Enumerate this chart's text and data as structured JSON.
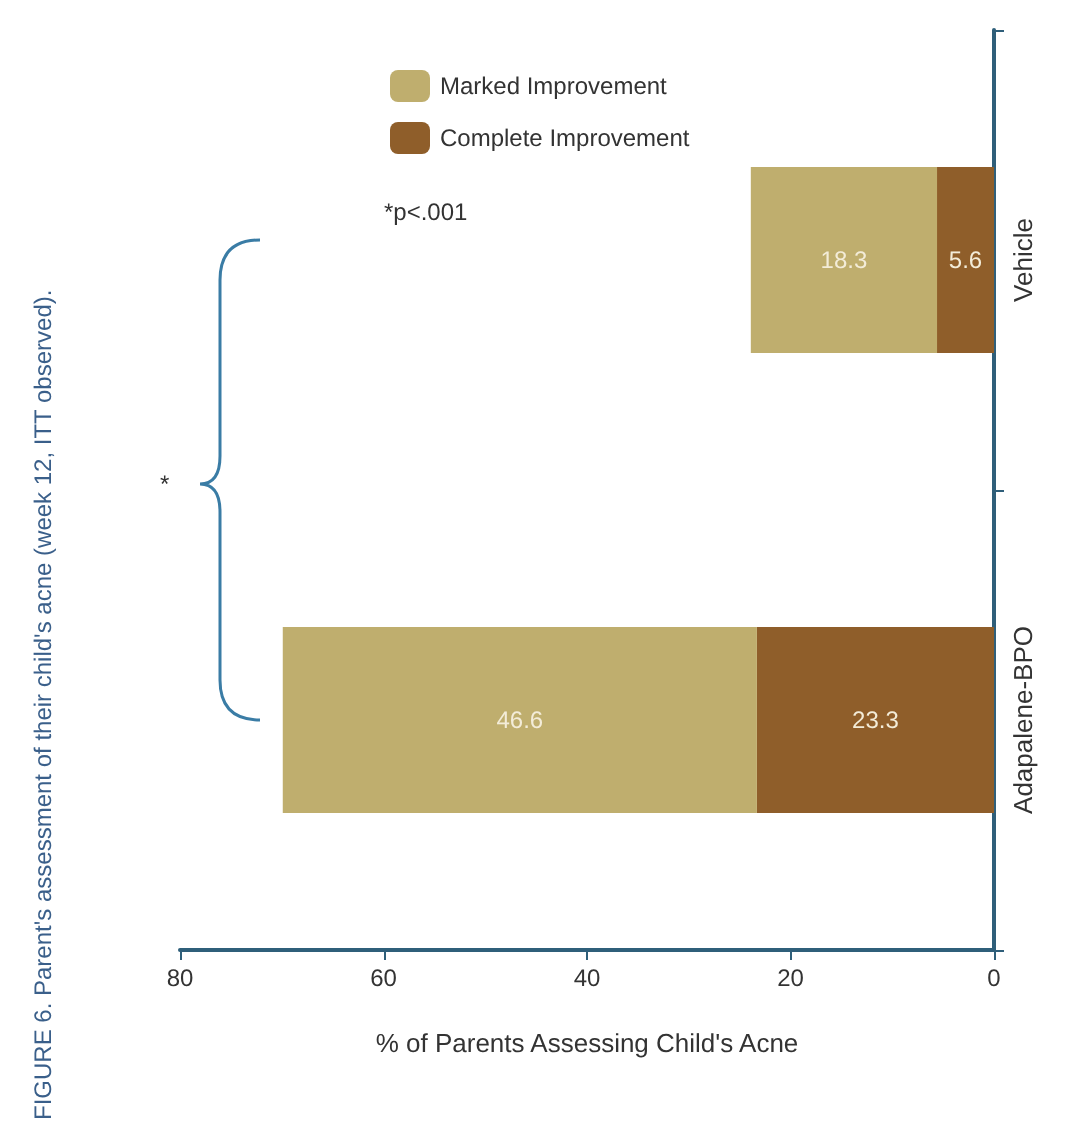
{
  "chart_data": {
    "type": "bar",
    "orientation": "horizontal",
    "title": "FIGURE 6. Parent's assessment of their child's acne (week 12, ITT observed).",
    "xlabel": "% of Parents Assessing Child's Acne",
    "categories": [
      "Vehicle",
      "Adapalene-BPO"
    ],
    "stacked": true,
    "series": [
      {
        "name": "Complete Improvement",
        "color": "#8f5e2a",
        "values": [
          5.6,
          23.3
        ]
      },
      {
        "name": "Marked Improvement",
        "color": "#bfae6e",
        "values": [
          18.3,
          46.6
        ]
      }
    ],
    "xlim": [
      80,
      0
    ],
    "xticks": [
      0,
      20,
      40,
      60,
      80
    ],
    "data_labels": true,
    "grid": false,
    "legend": "top left",
    "annotations": [
      "*",
      "*p<.001"
    ]
  }
}
